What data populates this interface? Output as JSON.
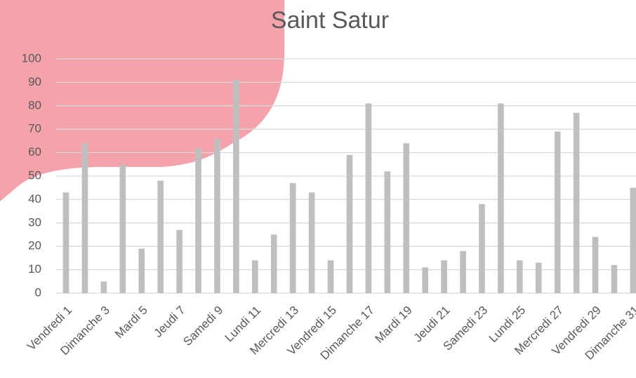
{
  "chart_data": {
    "type": "bar",
    "title": "Saint Satur",
    "categories": [
      "Vendredi 1",
      null,
      "Dimanche 3",
      null,
      "Mardi 5",
      null,
      "Jeudi 7",
      null,
      "Samedi 9",
      null,
      "Lundi 11",
      null,
      "Mercredi 13",
      null,
      "Vendredi 15",
      null,
      "Dimanche 17",
      null,
      "Mardi 19",
      null,
      "Jeudi 21",
      null,
      "Samedi 23",
      null,
      "Lundi 25",
      null,
      "Mercredi 27",
      null,
      "Vendredi 29",
      null,
      "Dimanche 31"
    ],
    "values": [
      43,
      64,
      5,
      55,
      19,
      48,
      27,
      62,
      66,
      91,
      14,
      25,
      47,
      43,
      14,
      59,
      81,
      52,
      64,
      11,
      14,
      18,
      38,
      81,
      14,
      13,
      69,
      77,
      24,
      12,
      45
    ],
    "color": "#bfbfbf",
    "ylim": [
      0,
      100
    ],
    "yticks": [
      0,
      10,
      20,
      30,
      40,
      50,
      60,
      70,
      80,
      90,
      100
    ],
    "grid": true
  }
}
